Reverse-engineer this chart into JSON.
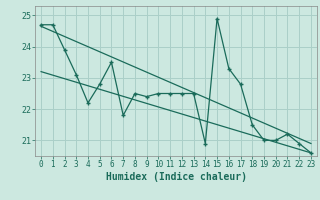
{
  "title": "",
  "xlabel": "Humidex (Indice chaleur)",
  "x": [
    0,
    1,
    2,
    3,
    4,
    5,
    6,
    7,
    8,
    9,
    10,
    11,
    12,
    13,
    14,
    15,
    16,
    17,
    18,
    19,
    20,
    21,
    22,
    23
  ],
  "y_data": [
    24.7,
    24.7,
    23.9,
    23.1,
    22.2,
    22.8,
    23.5,
    21.8,
    22.5,
    22.4,
    22.5,
    22.5,
    22.5,
    22.5,
    20.9,
    24.9,
    23.3,
    22.8,
    21.5,
    21.0,
    21.0,
    21.2,
    20.9,
    20.6
  ],
  "trend1_x": [
    0,
    23
  ],
  "trend1_y": [
    24.65,
    20.9
  ],
  "trend2_x": [
    0,
    23
  ],
  "trend2_y": [
    23.2,
    20.6
  ],
  "bg_color": "#cce8e0",
  "line_color": "#1a6b5a",
  "grid_color": "#aacfc8",
  "xlim": [
    -0.5,
    23.5
  ],
  "ylim": [
    20.5,
    25.3
  ],
  "yticks": [
    21,
    22,
    23,
    24,
    25
  ],
  "ytick_labels": [
    "21",
    "22",
    "23",
    "24",
    "25"
  ],
  "xlabel_fontsize": 7,
  "tick_fontsize": 5.5
}
